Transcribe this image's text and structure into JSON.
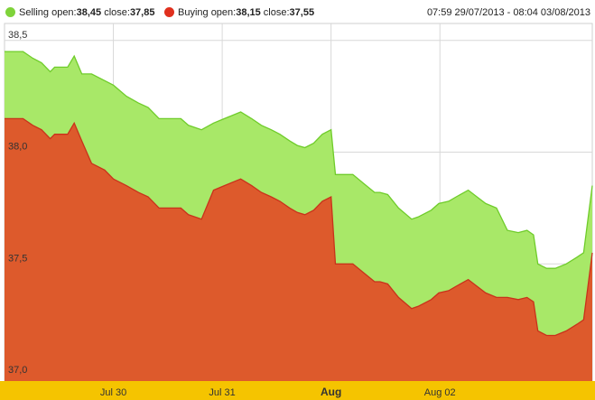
{
  "legend": {
    "selling": {
      "prefix": "Selling open:",
      "open": "38,45",
      "close_label": " close:",
      "close": "37,85",
      "color": "#7fd33a"
    },
    "buying": {
      "prefix": "Buying open:",
      "open": "38,15",
      "close_label": " close:",
      "close": "37,55",
      "color": "#e0301e"
    }
  },
  "range_text": "07:59 29/07/2013 - 08:04 03/08/2013",
  "chart_data": {
    "type": "area",
    "ylim": [
      37.0,
      38.6
    ],
    "yticks": [
      {
        "value": 37.0,
        "label": "37,0"
      },
      {
        "value": 37.5,
        "label": "37,5"
      },
      {
        "value": 38.0,
        "label": "38,0"
      },
      {
        "value": 38.5,
        "label": "38,5"
      }
    ],
    "xticks": [
      {
        "value": 1.0,
        "label": "Jul 30",
        "bold": false
      },
      {
        "value": 2.0,
        "label": "Jul 31",
        "bold": false
      },
      {
        "value": 3.0,
        "label": "Aug",
        "bold": true
      },
      {
        "value": 4.0,
        "label": "Aug 02",
        "bold": false
      }
    ],
    "xlim": [
      0.0,
      5.4
    ],
    "colors": {
      "selling_fill": "#a8e868",
      "selling_line": "#6fcc2a",
      "buying_fill": "#dd5a2c",
      "buying_line": "#c9321b",
      "axis_band": "#f5c400",
      "grid": "#d8d8d8"
    },
    "series": [
      {
        "name": "Selling",
        "x": [
          0.0,
          0.17,
          0.26,
          0.34,
          0.42,
          0.46,
          0.58,
          0.64,
          0.71,
          0.8,
          0.92,
          1.0,
          1.12,
          1.23,
          1.32,
          1.42,
          1.52,
          1.62,
          1.69,
          1.81,
          1.92,
          2.02,
          2.17,
          2.27,
          2.36,
          2.45,
          2.53,
          2.62,
          2.69,
          2.76,
          2.84,
          2.92,
          3.0,
          3.04,
          3.1,
          3.2,
          3.3,
          3.4,
          3.45,
          3.52,
          3.62,
          3.74,
          3.8,
          3.92,
          3.99,
          4.08,
          4.15,
          4.26,
          4.34,
          4.42,
          4.52,
          4.62,
          4.72,
          4.8,
          4.86,
          4.9,
          4.98,
          5.06,
          5.16,
          5.26,
          5.32,
          5.4
        ],
        "values": [
          38.45,
          38.45,
          38.42,
          38.4,
          38.36,
          38.38,
          38.38,
          38.43,
          38.35,
          38.35,
          38.32,
          38.3,
          38.25,
          38.22,
          38.2,
          38.15,
          38.15,
          38.15,
          38.12,
          38.1,
          38.13,
          38.15,
          38.18,
          38.15,
          38.12,
          38.1,
          38.08,
          38.05,
          38.03,
          38.02,
          38.04,
          38.08,
          38.1,
          37.9,
          37.9,
          37.9,
          37.86,
          37.82,
          37.82,
          37.81,
          37.75,
          37.7,
          37.71,
          37.74,
          37.77,
          37.78,
          37.8,
          37.83,
          37.8,
          37.77,
          37.75,
          37.65,
          37.64,
          37.65,
          37.63,
          37.5,
          37.48,
          37.48,
          37.5,
          37.53,
          37.55,
          37.85
        ]
      },
      {
        "name": "Buying",
        "x": [
          0.0,
          0.17,
          0.26,
          0.34,
          0.42,
          0.46,
          0.58,
          0.64,
          0.71,
          0.8,
          0.92,
          1.0,
          1.12,
          1.23,
          1.32,
          1.42,
          1.52,
          1.62,
          1.69,
          1.81,
          1.92,
          2.02,
          2.17,
          2.27,
          2.36,
          2.45,
          2.53,
          2.62,
          2.69,
          2.76,
          2.84,
          2.92,
          3.0,
          3.04,
          3.1,
          3.2,
          3.3,
          3.4,
          3.45,
          3.52,
          3.62,
          3.74,
          3.8,
          3.92,
          3.99,
          4.08,
          4.15,
          4.26,
          4.34,
          4.42,
          4.52,
          4.62,
          4.72,
          4.8,
          4.86,
          4.9,
          4.98,
          5.06,
          5.16,
          5.26,
          5.32,
          5.4
        ],
        "values": [
          38.15,
          38.15,
          38.12,
          38.1,
          38.06,
          38.08,
          38.08,
          38.13,
          38.05,
          37.95,
          37.92,
          37.88,
          37.85,
          37.82,
          37.8,
          37.75,
          37.75,
          37.75,
          37.72,
          37.7,
          37.83,
          37.85,
          37.88,
          37.85,
          37.82,
          37.8,
          37.78,
          37.75,
          37.73,
          37.72,
          37.74,
          37.78,
          37.8,
          37.5,
          37.5,
          37.5,
          37.46,
          37.42,
          37.42,
          37.41,
          37.35,
          37.3,
          37.31,
          37.34,
          37.37,
          37.38,
          37.4,
          37.43,
          37.4,
          37.37,
          37.35,
          37.35,
          37.34,
          37.35,
          37.33,
          37.2,
          37.18,
          37.18,
          37.2,
          37.23,
          37.25,
          37.55
        ]
      }
    ]
  }
}
